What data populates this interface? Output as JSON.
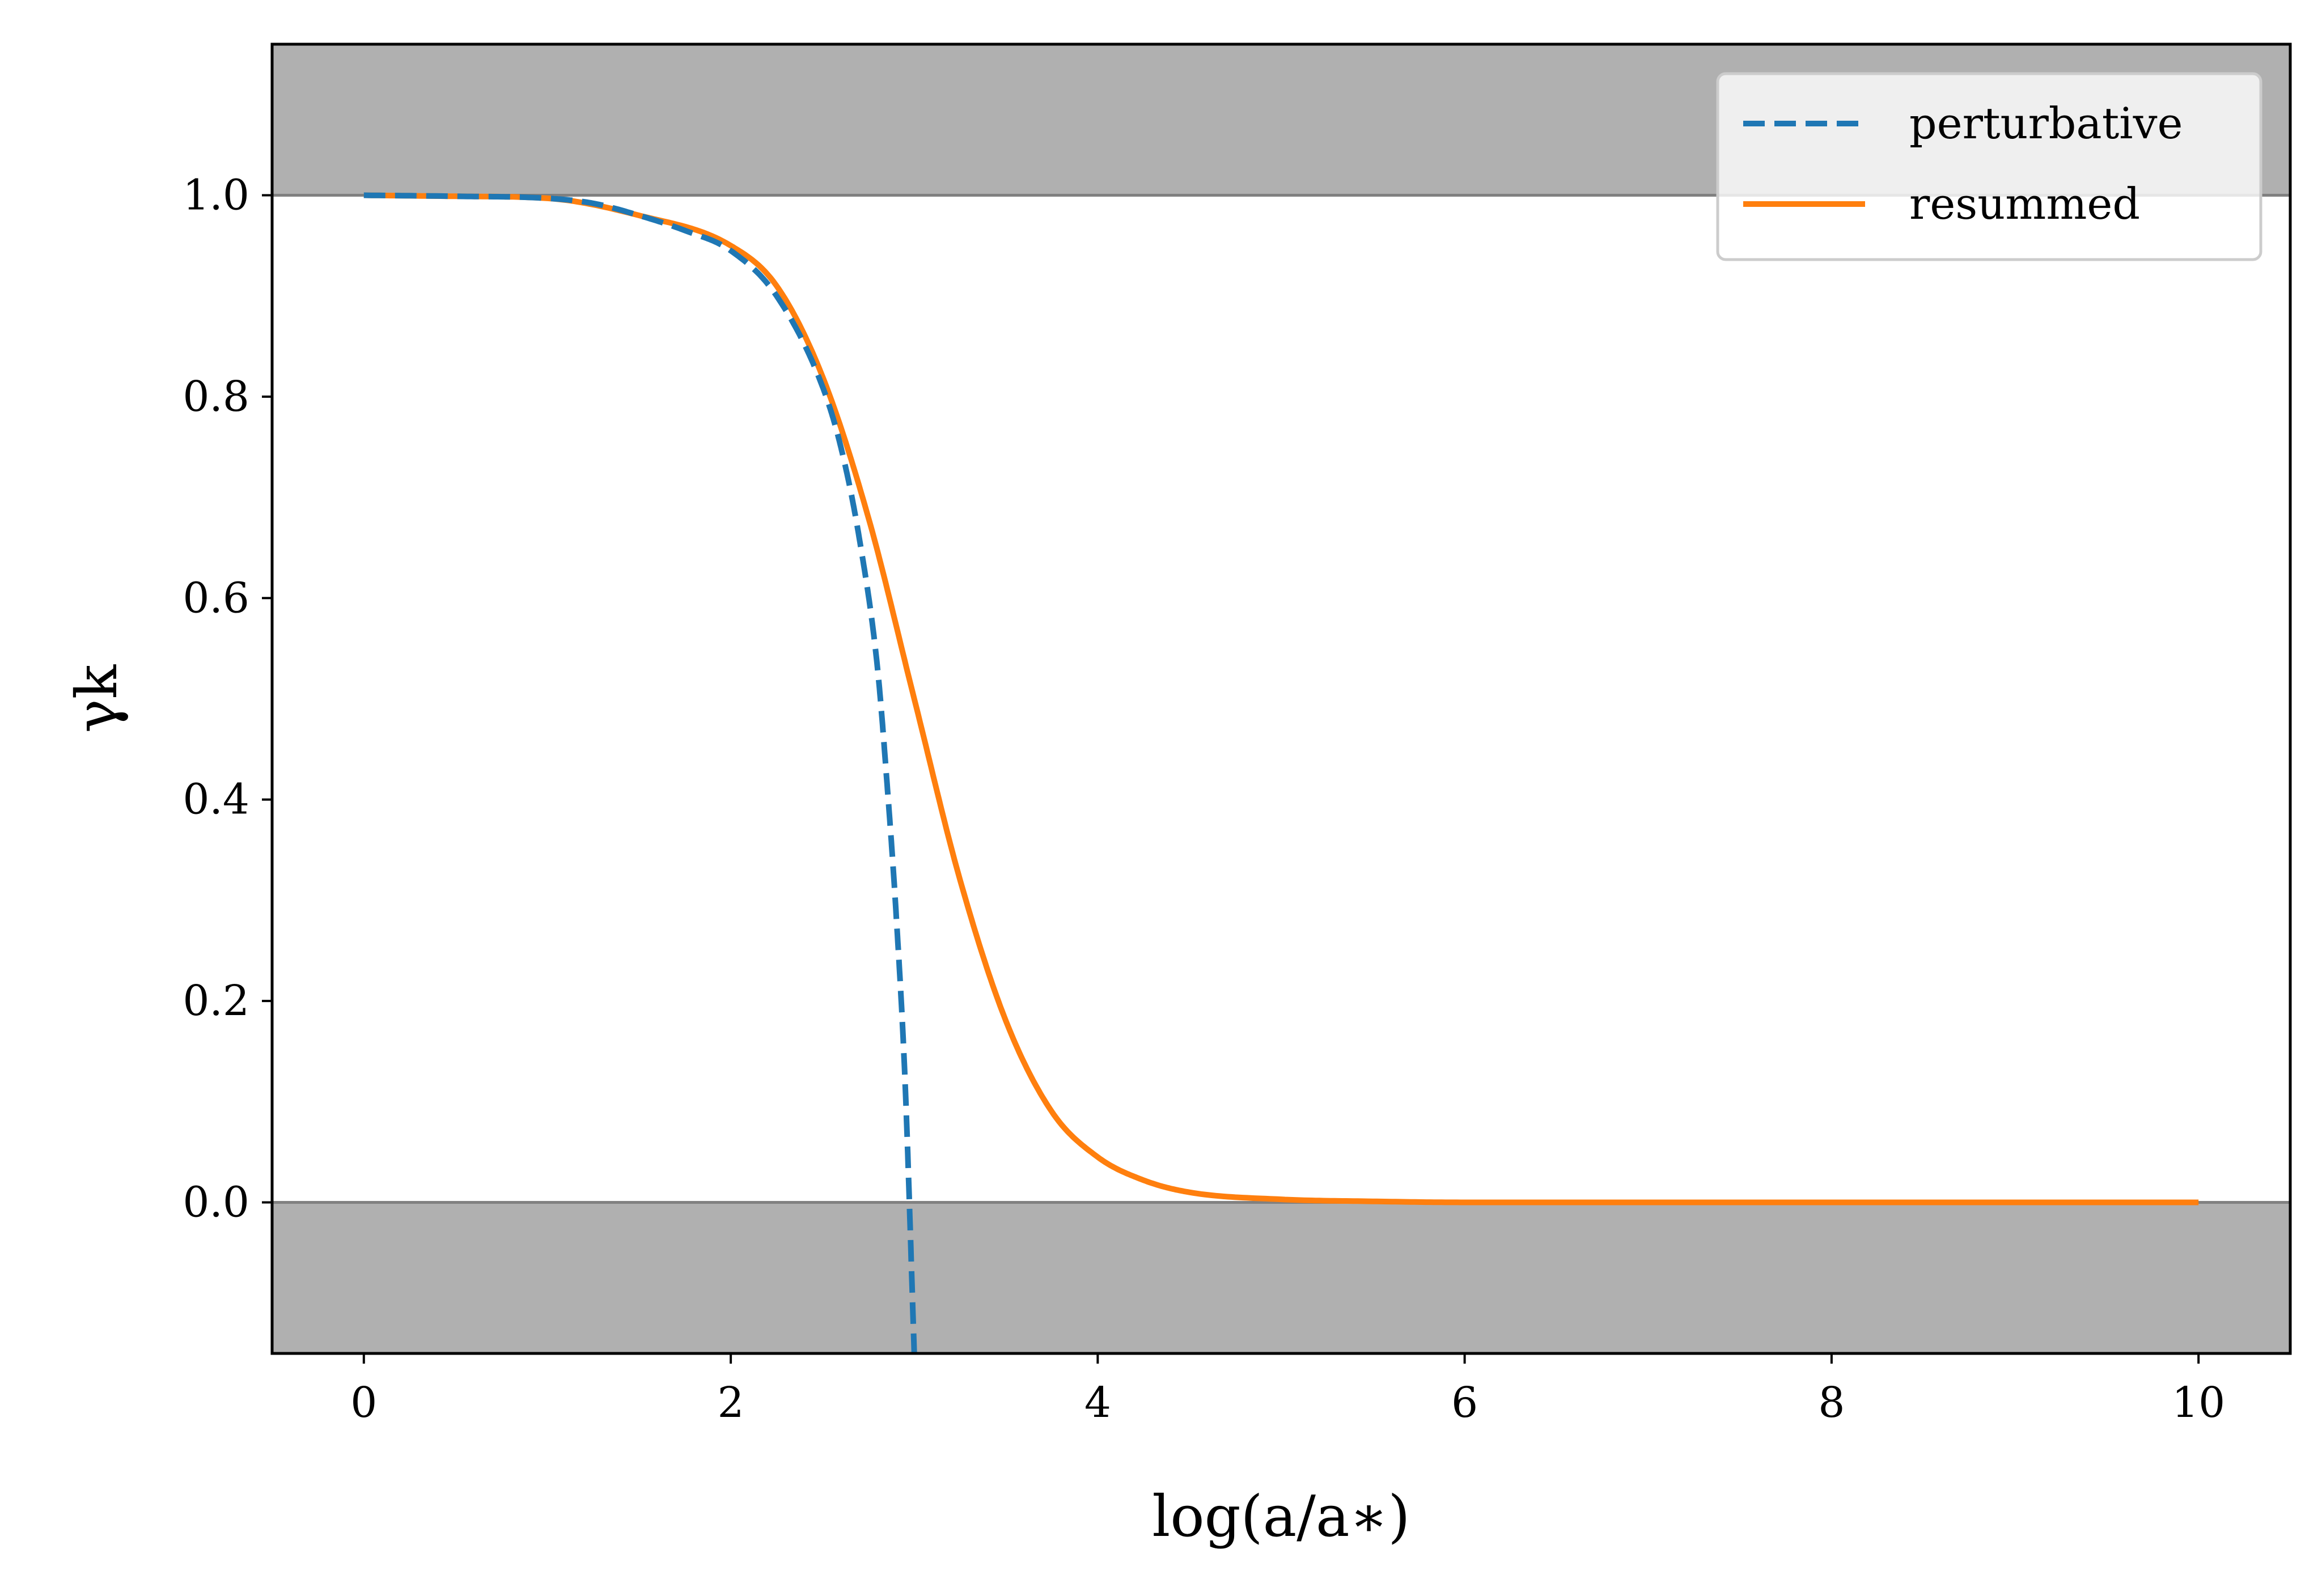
{
  "chart_data": {
    "type": "line",
    "title": "",
    "xlabel": "log(a/a∗)",
    "ylabel": "γk",
    "xlim": [
      -0.5,
      10.5
    ],
    "ylim": [
      -0.15,
      1.15
    ],
    "xticks": [
      0,
      2,
      4,
      6,
      8,
      10
    ],
    "xtick_labels": [
      "0",
      "2",
      "4",
      "6",
      "8",
      "10"
    ],
    "yticks": [
      0.0,
      0.2,
      0.4,
      0.6,
      0.8,
      1.0
    ],
    "ytick_labels": [
      "0.0",
      "0.2",
      "0.4",
      "0.6",
      "0.8",
      "1.0"
    ],
    "grid": false,
    "legend_position": "top-right",
    "shaded_regions": [
      {
        "y_from": 1.0,
        "y_to": 1.15,
        "color": "#b0b0b0"
      },
      {
        "y_from": -0.15,
        "y_to": 0.0,
        "color": "#b0b0b0"
      }
    ],
    "reference_lines": [
      {
        "y": 1.0,
        "color": "#808080"
      },
      {
        "y": 0.0,
        "color": "#808080"
      }
    ],
    "series": [
      {
        "name": "perturbative",
        "color": "#1f77b4",
        "style": "dashed",
        "x": [
          0,
          0.5,
          1.0,
          1.25,
          1.5,
          1.75,
          2.0,
          2.25,
          2.5,
          2.6,
          2.7,
          2.8,
          2.85,
          2.9,
          2.95,
          3.0
        ],
        "y": [
          1.0,
          0.999,
          0.997,
          0.992,
          0.98,
          0.965,
          0.945,
          0.9,
          0.81,
          0.75,
          0.66,
          0.53,
          0.42,
          0.29,
          0.12,
          -0.15
        ]
      },
      {
        "name": "resummed",
        "color": "#ff7f0e",
        "style": "solid",
        "x": [
          0,
          0.5,
          1.0,
          1.5,
          2.0,
          2.25,
          2.5,
          2.75,
          3.0,
          3.25,
          3.5,
          3.75,
          4.0,
          4.25,
          4.5,
          5.0,
          5.5,
          6.0,
          7.0,
          8.0,
          9.0,
          10.0
        ],
        "y": [
          1.0,
          0.999,
          0.997,
          0.98,
          0.95,
          0.91,
          0.82,
          0.68,
          0.5,
          0.32,
          0.18,
          0.09,
          0.045,
          0.022,
          0.01,
          0.003,
          0.001,
          0.0,
          0.0,
          0.0,
          0.0,
          0.0
        ]
      }
    ]
  }
}
